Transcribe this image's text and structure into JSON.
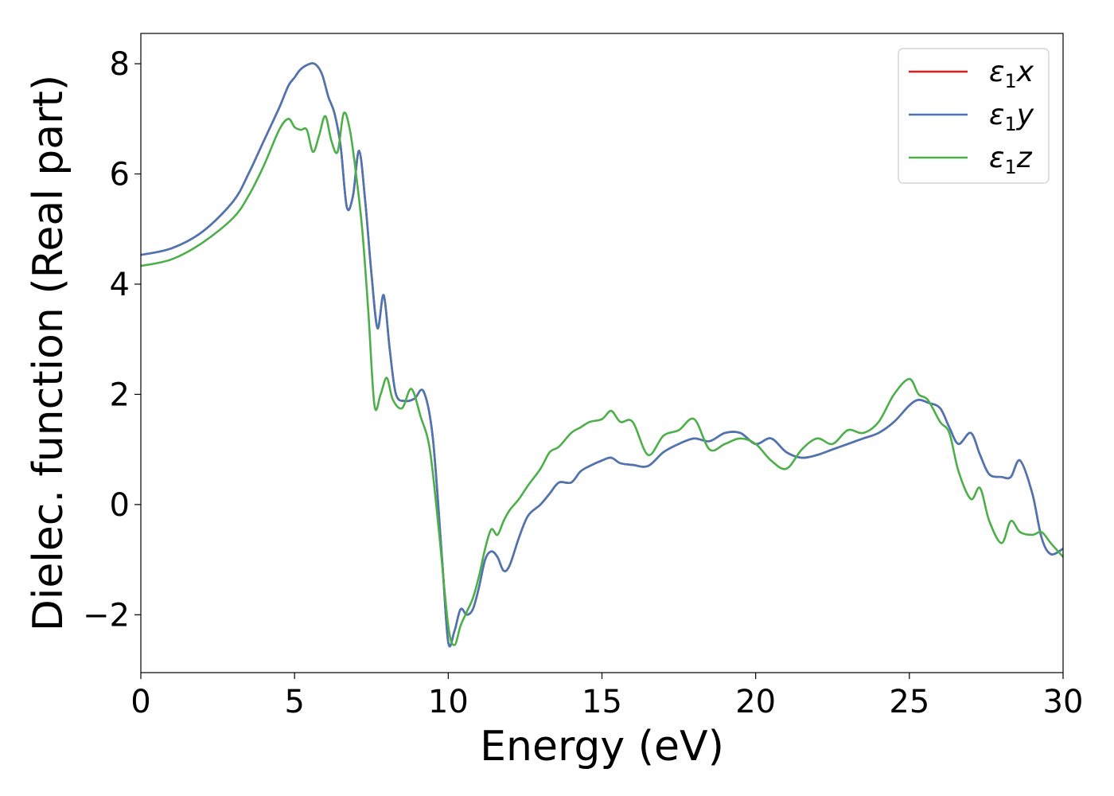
{
  "chart_data": {
    "type": "line",
    "xlabel": "Energy (eV)",
    "ylabel": "Dielec. function (Real part)",
    "xlim": [
      0,
      30
    ],
    "ylim": [
      -3.05,
      8.55
    ],
    "xticks": [
      0,
      5,
      10,
      15,
      20,
      25,
      30
    ],
    "xtick_labels": [
      "0",
      "5",
      "10",
      "15",
      "20",
      "25",
      "30"
    ],
    "yticks": [
      -2,
      0,
      2,
      4,
      6,
      8
    ],
    "ytick_labels": [
      "−2",
      "0",
      "2",
      "4",
      "6",
      "8"
    ],
    "grid": false,
    "legend_position": "top-right",
    "series": [
      {
        "name": "ε1x",
        "legend_symbol": "ε",
        "legend_sub": "1",
        "legend_var": "x",
        "color": "#e41a1c",
        "x": [
          0,
          1,
          2,
          3,
          3.5,
          4,
          4.5,
          4.8,
          5,
          5.2,
          5.5,
          5.7,
          5.9,
          6.1,
          6.3,
          6.5,
          6.7,
          6.9,
          7.1,
          7.3,
          7.5,
          7.7,
          7.9,
          8.1,
          8.3,
          8.6,
          8.9,
          9.2,
          9.5,
          9.8,
          10,
          10.2,
          10.4,
          10.6,
          10.8,
          11,
          11.2,
          11.4,
          11.6,
          11.8,
          12,
          12.3,
          12.6,
          13,
          13.3,
          13.6,
          14,
          14.3,
          14.6,
          15,
          15.3,
          15.6,
          16,
          16.5,
          17,
          17.5,
          18,
          18.5,
          19,
          19.5,
          20,
          20.5,
          21,
          21.5,
          22,
          22.5,
          23,
          23.5,
          24,
          24.5,
          25,
          25.3,
          25.6,
          26,
          26.3,
          26.6,
          27,
          27.3,
          27.6,
          28,
          28.3,
          28.6,
          29,
          29.3,
          29.6,
          30
        ],
        "y": [
          4.53,
          4.65,
          4.95,
          5.5,
          6.0,
          6.6,
          7.2,
          7.6,
          7.75,
          7.9,
          8.0,
          7.98,
          7.8,
          7.4,
          7.1,
          6.5,
          5.4,
          5.6,
          6.42,
          5.5,
          4.2,
          3.2,
          3.8,
          2.8,
          2.0,
          1.88,
          1.92,
          2.05,
          1.2,
          -1.0,
          -2.5,
          -2.3,
          -1.9,
          -2.0,
          -1.9,
          -1.5,
          -1.0,
          -0.85,
          -0.95,
          -1.2,
          -1.1,
          -0.6,
          -0.2,
          0.0,
          0.2,
          0.4,
          0.4,
          0.6,
          0.7,
          0.8,
          0.85,
          0.75,
          0.72,
          0.7,
          0.95,
          1.1,
          1.2,
          1.15,
          1.3,
          1.3,
          1.1,
          1.2,
          0.95,
          0.85,
          0.9,
          1.0,
          1.1,
          1.2,
          1.3,
          1.5,
          1.8,
          1.9,
          1.85,
          1.75,
          1.4,
          1.1,
          1.3,
          0.9,
          0.55,
          0.5,
          0.5,
          0.8,
          0.2,
          -0.6,
          -0.9,
          -0.8
        ]
      },
      {
        "name": "ε1y",
        "legend_symbol": "ε",
        "legend_sub": "1",
        "legend_var": "y",
        "color": "#4a77b4",
        "x": [
          0,
          1,
          2,
          3,
          3.5,
          4,
          4.5,
          4.8,
          5,
          5.2,
          5.5,
          5.7,
          5.9,
          6.1,
          6.3,
          6.5,
          6.7,
          6.9,
          7.1,
          7.3,
          7.5,
          7.7,
          7.9,
          8.1,
          8.3,
          8.6,
          8.9,
          9.2,
          9.5,
          9.8,
          10,
          10.2,
          10.4,
          10.6,
          10.8,
          11,
          11.2,
          11.4,
          11.6,
          11.8,
          12,
          12.3,
          12.6,
          13,
          13.3,
          13.6,
          14,
          14.3,
          14.6,
          15,
          15.3,
          15.6,
          16,
          16.5,
          17,
          17.5,
          18,
          18.5,
          19,
          19.5,
          20,
          20.5,
          21,
          21.5,
          22,
          22.5,
          23,
          23.5,
          24,
          24.5,
          25,
          25.3,
          25.6,
          26,
          26.3,
          26.6,
          27,
          27.3,
          27.6,
          28,
          28.3,
          28.6,
          29,
          29.3,
          29.6,
          30
        ],
        "y": [
          4.53,
          4.65,
          4.95,
          5.5,
          6.0,
          6.6,
          7.2,
          7.6,
          7.75,
          7.9,
          8.0,
          7.98,
          7.8,
          7.4,
          7.1,
          6.5,
          5.4,
          5.6,
          6.42,
          5.5,
          4.2,
          3.2,
          3.8,
          2.8,
          2.0,
          1.88,
          1.92,
          2.05,
          1.2,
          -1.0,
          -2.5,
          -2.3,
          -1.9,
          -2.0,
          -1.9,
          -1.5,
          -1.0,
          -0.85,
          -0.95,
          -1.2,
          -1.1,
          -0.6,
          -0.2,
          0.0,
          0.2,
          0.4,
          0.4,
          0.6,
          0.7,
          0.8,
          0.85,
          0.75,
          0.72,
          0.7,
          0.95,
          1.1,
          1.2,
          1.15,
          1.3,
          1.3,
          1.1,
          1.2,
          0.95,
          0.85,
          0.9,
          1.0,
          1.1,
          1.2,
          1.3,
          1.5,
          1.8,
          1.9,
          1.85,
          1.75,
          1.4,
          1.1,
          1.3,
          0.9,
          0.55,
          0.5,
          0.5,
          0.8,
          0.2,
          -0.6,
          -0.9,
          -0.8
        ]
      },
      {
        "name": "ε1z",
        "legend_symbol": "ε",
        "legend_sub": "1",
        "legend_var": "z",
        "color": "#4daf4a",
        "x": [
          0,
          1,
          2,
          3,
          3.5,
          4,
          4.5,
          4.8,
          5,
          5.2,
          5.4,
          5.6,
          5.8,
          6.0,
          6.2,
          6.4,
          6.6,
          6.8,
          7.0,
          7.2,
          7.4,
          7.6,
          7.8,
          8.0,
          8.2,
          8.5,
          8.8,
          9.1,
          9.4,
          9.7,
          10,
          10.2,
          10.4,
          10.6,
          10.8,
          11,
          11.2,
          11.4,
          11.6,
          11.8,
          12,
          12.3,
          12.6,
          13,
          13.3,
          13.6,
          14,
          14.3,
          14.6,
          15,
          15.3,
          15.6,
          16,
          16.5,
          17,
          17.5,
          18,
          18.5,
          19,
          19.5,
          20,
          20.5,
          21,
          21.5,
          22,
          22.5,
          23,
          23.5,
          24,
          24.5,
          25,
          25.3,
          25.6,
          26,
          26.3,
          26.6,
          27,
          27.3,
          27.6,
          28,
          28.3,
          28.6,
          29,
          29.3,
          29.6,
          30
        ],
        "y": [
          4.33,
          4.45,
          4.75,
          5.2,
          5.6,
          6.15,
          6.8,
          7.0,
          6.85,
          6.8,
          6.8,
          6.4,
          6.7,
          7.05,
          6.6,
          6.4,
          7.1,
          6.8,
          6.0,
          5.0,
          3.5,
          1.8,
          2.0,
          2.3,
          1.9,
          1.75,
          2.1,
          1.6,
          1.0,
          -0.5,
          -2.2,
          -2.55,
          -2.2,
          -1.95,
          -1.7,
          -1.3,
          -0.8,
          -0.45,
          -0.55,
          -0.3,
          -0.1,
          0.1,
          0.35,
          0.65,
          0.95,
          1.05,
          1.3,
          1.4,
          1.5,
          1.55,
          1.7,
          1.5,
          1.5,
          0.9,
          1.25,
          1.35,
          1.55,
          1.0,
          1.1,
          1.2,
          1.1,
          0.8,
          0.65,
          1.0,
          1.2,
          1.1,
          1.35,
          1.3,
          1.5,
          2.0,
          2.28,
          2.0,
          1.9,
          1.5,
          1.3,
          0.6,
          0.1,
          0.3,
          -0.3,
          -0.7,
          -0.3,
          -0.5,
          -0.55,
          -0.5,
          -0.7,
          -0.95
        ]
      }
    ]
  }
}
